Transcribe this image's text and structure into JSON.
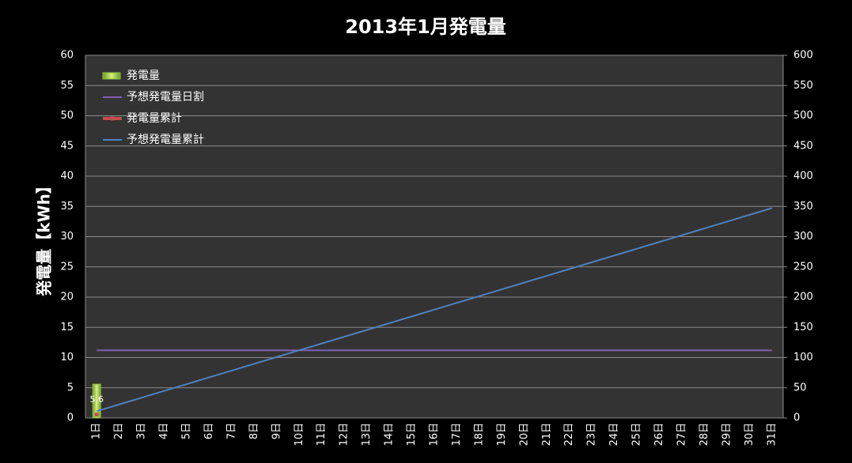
{
  "chart_data": {
    "type": "combo",
    "title": "2013年1月発電量",
    "y_label": "発電量【kWh】",
    "categories": [
      "1日",
      "2日",
      "3日",
      "4日",
      "5日",
      "6日",
      "7日",
      "8日",
      "9日",
      "10日",
      "11日",
      "12日",
      "13日",
      "14日",
      "15日",
      "16日",
      "17日",
      "18日",
      "19日",
      "20日",
      "21日",
      "22日",
      "23日",
      "24日",
      "25日",
      "26日",
      "27日",
      "28日",
      "29日",
      "30日",
      "31日"
    ],
    "series": [
      {
        "name": "発電量",
        "type": "bar",
        "color": "#8cc63f",
        "data_labels": true,
        "values": [
          5.6,
          null,
          null,
          null,
          null,
          null,
          null,
          null,
          null,
          null,
          null,
          null,
          null,
          null,
          null,
          null,
          null,
          null,
          null,
          null,
          null,
          null,
          null,
          null,
          null,
          null,
          null,
          null,
          null,
          null,
          null
        ]
      },
      {
        "name": "予想発電量日割",
        "type": "line",
        "color": "#7f5fb5",
        "values": [
          11.2,
          11.2,
          11.2,
          11.2,
          11.2,
          11.2,
          11.2,
          11.2,
          11.2,
          11.2,
          11.2,
          11.2,
          11.2,
          11.2,
          11.2,
          11.2,
          11.2,
          11.2,
          11.2,
          11.2,
          11.2,
          11.2,
          11.2,
          11.2,
          11.2,
          11.2,
          11.2,
          11.2,
          11.2,
          11.2,
          11.2
        ]
      },
      {
        "name": "発電量累計",
        "type": "line",
        "axis": "y2",
        "color": "#c0504d",
        "marker": "square",
        "values": [
          5.6,
          null,
          null,
          null,
          null,
          null,
          null,
          null,
          null,
          null,
          null,
          null,
          null,
          null,
          null,
          null,
          null,
          null,
          null,
          null,
          null,
          null,
          null,
          null,
          null,
          null,
          null,
          null,
          null,
          null,
          null
        ]
      },
      {
        "name": "予想発電量累計",
        "type": "line",
        "axis": "y2",
        "color": "#4f81bd",
        "values": [
          11.2,
          22.4,
          33.6,
          44.8,
          56,
          67.2,
          78.4,
          89.6,
          100.8,
          112,
          123.2,
          134.4,
          145.6,
          156.8,
          168,
          179.2,
          190.4,
          201.6,
          212.8,
          224,
          235.2,
          246.4,
          257.6,
          268.8,
          280,
          291.2,
          302.4,
          313.6,
          324.8,
          336,
          347.2
        ]
      }
    ],
    "ylim": [
      0,
      60
    ],
    "yticks": [
      0,
      5,
      10,
      15,
      20,
      25,
      30,
      35,
      40,
      45,
      50,
      55,
      60
    ],
    "y2lim": [
      0,
      600
    ],
    "y2ticks": [
      0,
      50,
      100,
      150,
      200,
      250,
      300,
      350,
      400,
      450,
      500,
      550,
      600
    ],
    "grid": true,
    "legend": "top-left"
  }
}
